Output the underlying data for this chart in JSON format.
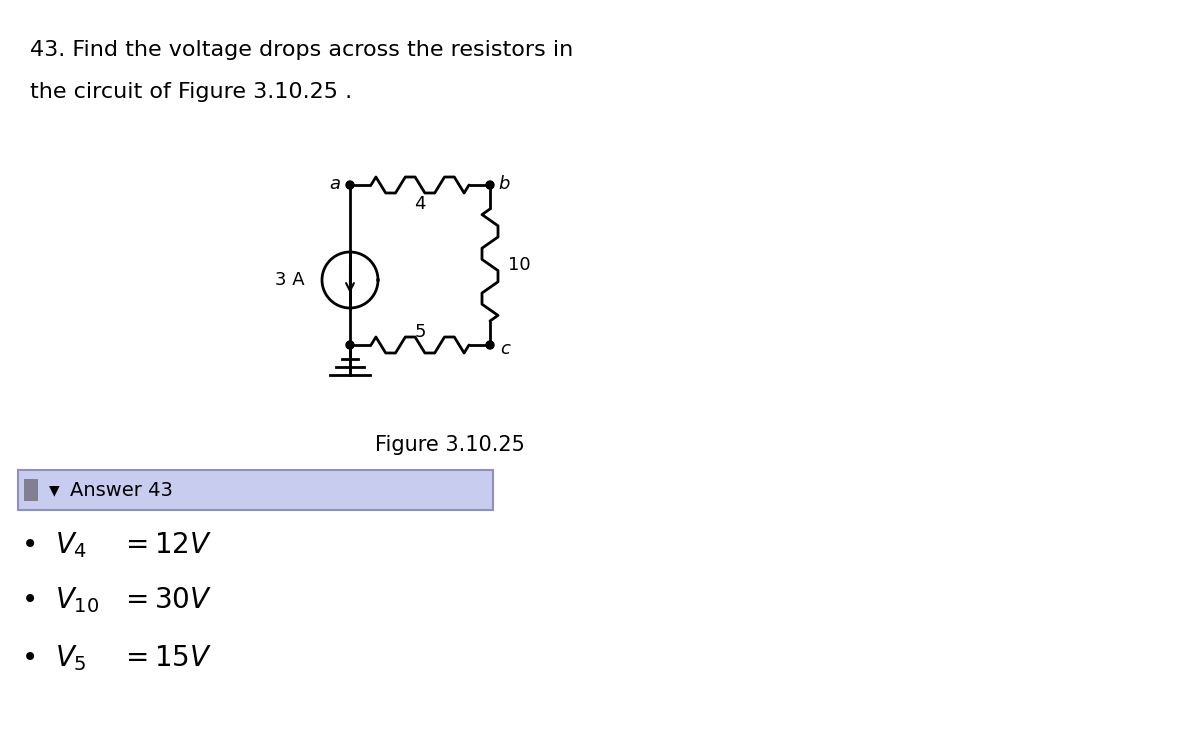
{
  "title_line1": "43. Find the voltage drops across the resistors in",
  "title_line2": "the circuit of Figure 3.10.25 .",
  "figure_caption": "Figure 3.10.25",
  "answer_label": "Answer 43",
  "answers": [
    {
      "sub": "4",
      "val": "12V"
    },
    {
      "sub": "10",
      "val": "30V"
    },
    {
      "sub": "5",
      "val": "15V"
    }
  ],
  "answer_bg": "#c8cdf0",
  "answer_border": "#9090c0",
  "bg_color": "#ffffff",
  "text_color": "#000000",
  "circuit_color": "#000000",
  "source_label": "3 A",
  "resistors": [
    "4",
    "10",
    "5"
  ],
  "nodes": [
    "a",
    "b",
    "c"
  ],
  "title_fontsize": 16,
  "body_fontsize": 16,
  "caption_fontsize": 15,
  "circuit_lw": 2.0,
  "n_zigzag": 5
}
